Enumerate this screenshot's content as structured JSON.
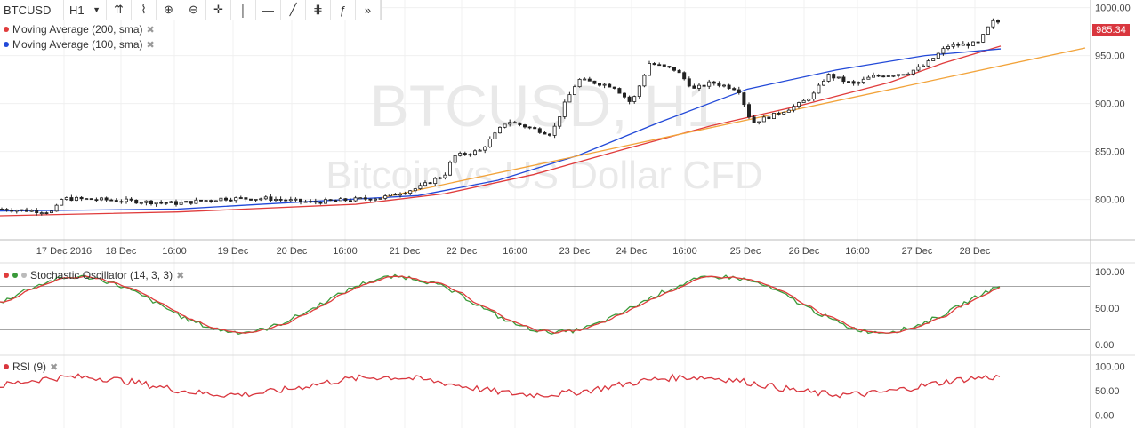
{
  "toolbar": {
    "symbol": "BTCUSD",
    "timeframe": "H1",
    "icons": [
      "compare-icon",
      "indicators-icon",
      "zoom-in-icon",
      "zoom-out-icon",
      "crosshair-icon",
      "vertical-line-icon",
      "horizontal-line-icon",
      "trend-line-icon",
      "fib-icon",
      "text-icon",
      "more-icon"
    ],
    "glyphs": [
      "⇈",
      "⌇",
      "⊕",
      "⊖",
      "✛",
      "│",
      "—",
      "╱",
      "⋕",
      "ƒ",
      "»"
    ]
  },
  "legend": {
    "ma200": "Moving Average (200, sma)",
    "ma100": "Moving Average (100, sma)",
    "close_icon": "✖"
  },
  "watermark": {
    "title": "BTCUSD, H1",
    "subtitle": "Bitcoin vs US Dollar CFD"
  },
  "price_badge": "985.34",
  "stoch": {
    "title": "Stochastic Oscillator (14, 3, 3)"
  },
  "rsi": {
    "title": "RSI (9)"
  },
  "colors": {
    "ma200": "#e03c3c",
    "ma100": "#2249d8",
    "trend": "#f2a33a",
    "stoch_k": "#3a9a3a",
    "stoch_d": "#e03c3c",
    "rsi": "#d9363e",
    "candle": "#222222"
  },
  "chart_data": {
    "type": "candlestick",
    "x_ticks": [
      "17 Dec 2016",
      "18 Dec",
      "16:00",
      "19 Dec",
      "20 Dec",
      "16:00",
      "21 Dec",
      "22 Dec",
      "16:00",
      "23 Dec",
      "24 Dec",
      "16:00",
      "25 Dec",
      "26 Dec",
      "16:00",
      "27 Dec",
      "28 Dec"
    ],
    "price_axis": {
      "ticks": [
        "1000.00",
        "950.00",
        "900.00",
        "850.00",
        "800.00"
      ],
      "ylim": [
        758,
        1008
      ]
    },
    "close_anchors": [
      [
        0,
        790
      ],
      [
        60,
        787
      ],
      [
        70,
        801
      ],
      [
        110,
        800
      ],
      [
        200,
        796
      ],
      [
        250,
        801
      ],
      [
        300,
        801
      ],
      [
        350,
        797
      ],
      [
        430,
        802
      ],
      [
        470,
        812
      ],
      [
        500,
        826
      ],
      [
        510,
        845
      ],
      [
        540,
        851
      ],
      [
        570,
        882
      ],
      [
        620,
        868
      ],
      [
        635,
        900
      ],
      [
        650,
        925
      ],
      [
        690,
        918
      ],
      [
        710,
        900
      ],
      [
        730,
        942
      ],
      [
        760,
        935
      ],
      [
        780,
        915
      ],
      [
        800,
        922
      ],
      [
        830,
        915
      ],
      [
        845,
        880
      ],
      [
        870,
        888
      ],
      [
        900,
        900
      ],
      [
        915,
        910
      ],
      [
        930,
        930
      ],
      [
        960,
        920
      ],
      [
        980,
        928
      ],
      [
        1020,
        932
      ],
      [
        1040,
        940
      ],
      [
        1065,
        960
      ],
      [
        1100,
        963
      ],
      [
        1115,
        985
      ],
      [
        1125,
        985
      ]
    ],
    "ma200": [
      [
        0,
        783
      ],
      [
        200,
        787
      ],
      [
        400,
        795
      ],
      [
        500,
        806
      ],
      [
        600,
        826
      ],
      [
        700,
        852
      ],
      [
        800,
        877
      ],
      [
        900,
        898
      ],
      [
        1000,
        922
      ],
      [
        1060,
        942
      ],
      [
        1125,
        960
      ]
    ],
    "ma100": [
      [
        0,
        788
      ],
      [
        200,
        790
      ],
      [
        350,
        798
      ],
      [
        470,
        804
      ],
      [
        560,
        820
      ],
      [
        650,
        846
      ],
      [
        740,
        880
      ],
      [
        840,
        915
      ],
      [
        940,
        935
      ],
      [
        1040,
        950
      ],
      [
        1125,
        957
      ]
    ],
    "trendline": [
      [
        430,
        802
      ],
      [
        1220,
        958
      ]
    ],
    "stoch_axis": {
      "ticks": [
        "100.00",
        "50.00",
        "0.00"
      ],
      "ylim": [
        -5,
        105
      ]
    },
    "rsi_axis": {
      "ticks": [
        "100.00",
        "50.00",
        "0.00"
      ],
      "ylim": [
        -5,
        105
      ]
    }
  }
}
